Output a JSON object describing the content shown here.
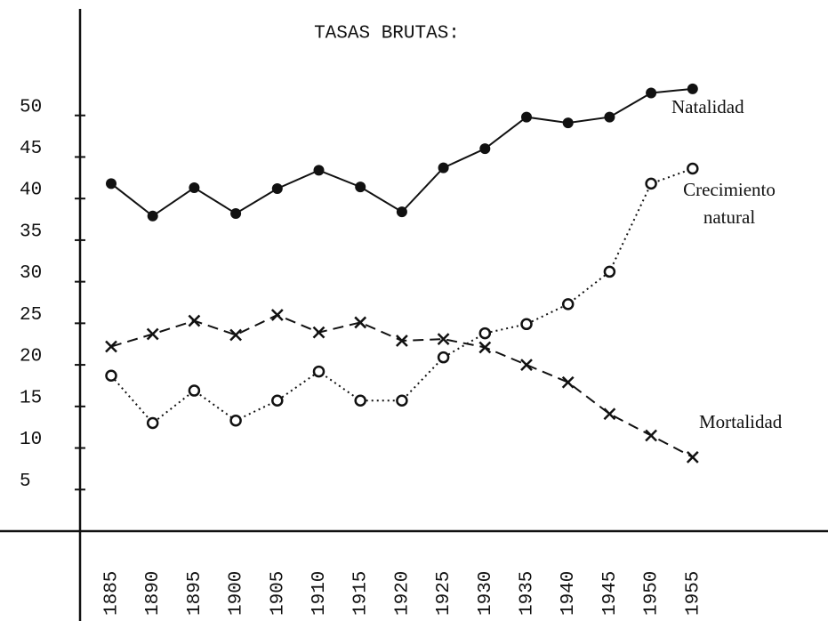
{
  "chart_data": {
    "type": "line",
    "title": "TASAS BRUTAS:",
    "categories": [
      "1885",
      "1890",
      "1895",
      "1900",
      "1905",
      "1910",
      "1915",
      "1920",
      "1925",
      "1930",
      "1935",
      "1940",
      "1945",
      "1950",
      "1955"
    ],
    "series": [
      {
        "name": "Natalidad",
        "color": "#111111",
        "line_style": "solid",
        "marker": "dot",
        "values": [
          41.8,
          37.9,
          41.3,
          38.2,
          41.2,
          43.4,
          41.4,
          38.4,
          43.7,
          46.0,
          49.8,
          49.1,
          49.8,
          52.7,
          53.2
        ]
      },
      {
        "name": "Crecimiento natural",
        "color": "#111111",
        "line_style": "dotted",
        "marker": "circle",
        "values": [
          18.7,
          13.0,
          16.9,
          13.3,
          15.7,
          19.2,
          15.7,
          15.7,
          20.9,
          23.8,
          24.9,
          27.3,
          31.2,
          41.8,
          43.6
        ]
      },
      {
        "name": "Mortalidad",
        "color": "#111111",
        "line_style": "dashed",
        "marker": "x",
        "values": [
          22.2,
          23.7,
          25.3,
          23.6,
          26.0,
          23.9,
          25.1,
          22.9,
          23.1,
          22.1,
          20.0,
          17.9,
          14.1,
          11.5,
          8.9
        ]
      }
    ],
    "ylim": [
      0,
      55
    ],
    "yticks": [
      5,
      10,
      15,
      20,
      25,
      30,
      35,
      40,
      45,
      50
    ]
  }
}
